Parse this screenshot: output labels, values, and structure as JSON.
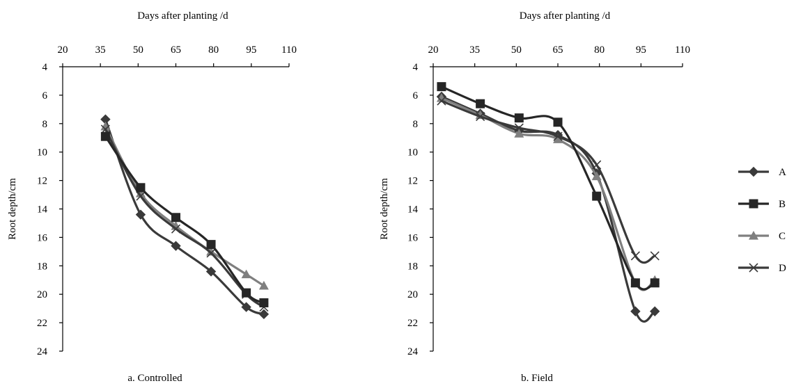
{
  "chart_data": [
    {
      "type": "line",
      "caption": "a. Controlled",
      "xlabel": "Days after planting /d",
      "ylabel": "Root depth/cm",
      "x_axis_position": "top",
      "y_axis_inverted": true,
      "xlim": [
        20,
        110
      ],
      "ylim": [
        4,
        24
      ],
      "xticks": [
        20,
        35,
        50,
        65,
        80,
        95,
        110
      ],
      "yticks": [
        4,
        6,
        8,
        10,
        12,
        14,
        16,
        18,
        20,
        22,
        24
      ],
      "x": [
        37,
        51,
        65,
        79,
        93,
        100
      ],
      "series": [
        {
          "name": "A",
          "values": [
            7.7,
            14.4,
            16.6,
            18.4,
            20.9,
            21.4
          ]
        },
        {
          "name": "B",
          "values": [
            8.9,
            12.5,
            14.6,
            16.5,
            19.9,
            20.6
          ]
        },
        {
          "name": "C",
          "values": [
            8.2,
            12.9,
            15.2,
            17.0,
            18.6,
            19.4
          ]
        },
        {
          "name": "D",
          "values": [
            8.4,
            13.1,
            15.4,
            17.1,
            20.0,
            20.9
          ]
        }
      ]
    },
    {
      "type": "line",
      "caption": "b. Field",
      "xlabel": "Days after planting /d",
      "ylabel": "Root depth/cm",
      "x_axis_position": "top",
      "y_axis_inverted": true,
      "xlim": [
        20,
        110
      ],
      "ylim": [
        4,
        24
      ],
      "xticks": [
        20,
        35,
        50,
        65,
        80,
        95,
        110
      ],
      "yticks": [
        4,
        6,
        8,
        10,
        12,
        14,
        16,
        18,
        20,
        22,
        24
      ],
      "x": [
        23,
        37,
        51,
        65,
        79,
        93,
        100
      ],
      "series": [
        {
          "name": "A",
          "values": [
            6.1,
            7.3,
            8.5,
            8.8,
            11.5,
            21.2,
            21.2
          ]
        },
        {
          "name": "B",
          "values": [
            5.4,
            6.6,
            7.6,
            7.9,
            13.1,
            19.2,
            19.2
          ]
        },
        {
          "name": "C",
          "values": [
            6.2,
            7.4,
            8.7,
            9.1,
            11.7,
            19.2,
            19.0
          ]
        },
        {
          "name": "D",
          "values": [
            6.4,
            7.5,
            8.3,
            8.9,
            10.9,
            17.3,
            17.3
          ]
        }
      ]
    }
  ],
  "legend": {
    "position": "right",
    "entries": [
      {
        "name": "A",
        "marker": "diamond",
        "color": "#3a3a3a"
      },
      {
        "name": "B",
        "marker": "square",
        "color": "#262626"
      },
      {
        "name": "C",
        "marker": "triangle",
        "color": "#7f7f7f"
      },
      {
        "name": "D",
        "marker": "x",
        "color": "#3a3a3a"
      }
    ]
  }
}
